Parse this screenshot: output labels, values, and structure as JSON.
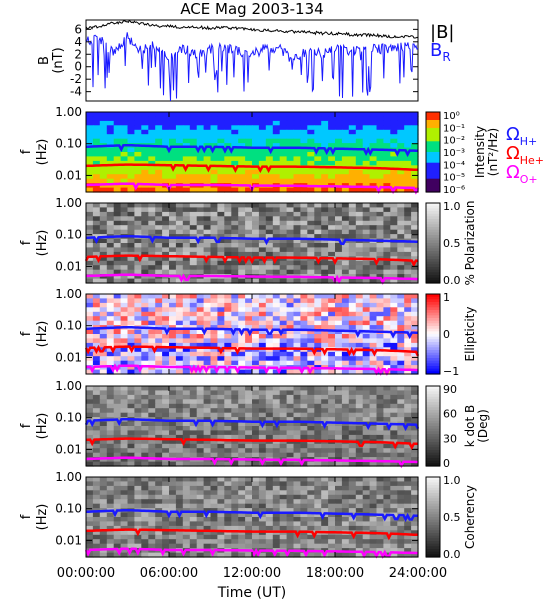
{
  "title": "ACE Mag 2003-134",
  "time_axis": {
    "label": "Time (UT)",
    "ticks": [
      "00:00:00",
      "06:00:00",
      "12:00:00",
      "18:00:00",
      "24:00:00"
    ],
    "range_hours": [
      0,
      24
    ]
  },
  "freq_ticks": [
    "1.00",
    "0.10",
    "0.01"
  ],
  "freq_axis_label": [
    "f",
    "(Hz)"
  ],
  "b_panel": {
    "ylabel": [
      "B",
      "(nT)"
    ],
    "yticks": [
      "6",
      "4",
      "2",
      "0",
      "-2",
      "-4"
    ],
    "ylim": [
      -5.5,
      7.5
    ],
    "legend": [
      {
        "main": "|B|",
        "sub": "",
        "color": "#000000"
      },
      {
        "main": "B",
        "sub": "R",
        "color": "#1a1aff"
      }
    ]
  },
  "gyro_legend": [
    {
      "main": "Ω",
      "sub": "H+",
      "color": "#1a1aff"
    },
    {
      "main": "Ω",
      "sub": "He+",
      "color": "#ff0000"
    },
    {
      "main": "Ω",
      "sub": "O+",
      "color": "#ff00ff"
    }
  ],
  "colorbars": [
    {
      "label_lines": [
        "Intensity",
        "(nT²/Hz)"
      ],
      "ticks": [
        "10⁰",
        "10⁻¹",
        "10⁻²",
        "10⁻³",
        "10⁻⁴",
        "10⁻⁵",
        "10⁻⁶"
      ]
    },
    {
      "label_lines": [
        "% Polarization"
      ],
      "ticks": [
        "1.0",
        "0.5",
        "0.0"
      ]
    },
    {
      "label_lines": [
        "Ellipticity"
      ],
      "ticks": [
        "1",
        "0",
        "−1"
      ]
    },
    {
      "label_lines": [
        "k dot B",
        "(Deg)"
      ],
      "ticks": [
        "90",
        "60",
        "30",
        "0"
      ]
    },
    {
      "label_lines": [
        "Coherency"
      ],
      "ticks": [
        "1.0",
        "0.5",
        "0.0"
      ]
    }
  ],
  "colors": {
    "b_total": "#000000",
    "b_radial": "#1a1aff",
    "omega_h": "#1a1aff",
    "omega_he": "#ff0000",
    "omega_o": "#ff00ff"
  },
  "chart_data": [
    {
      "type": "line",
      "title": "ACE Mag 2003-134",
      "ylabel": "B (nT)",
      "xlabel": "Time (UT)",
      "ylim": [
        -5.5,
        7.5
      ],
      "x": [
        0,
        1,
        2,
        3,
        4,
        5,
        6,
        7,
        8,
        9,
        10,
        11,
        12,
        13,
        14,
        15,
        16,
        17,
        18,
        19,
        20,
        21,
        22,
        23,
        24
      ],
      "series": [
        {
          "name": "|B|",
          "values": [
            6.2,
            6.5,
            7.0,
            7.3,
            6.9,
            6.6,
            6.5,
            6.3,
            6.4,
            6.2,
            6.3,
            6.1,
            6.0,
            5.8,
            5.7,
            5.6,
            5.5,
            5.4,
            5.3,
            5.2,
            5.1,
            5.0,
            4.9,
            4.8,
            4.7
          ]
        },
        {
          "name": "B R",
          "values": [
            4.0,
            4.5,
            2.0,
            4.8,
            2.5,
            3.5,
            1.5,
            3.0,
            2.0,
            2.8,
            3.2,
            2.5,
            2.0,
            3.0,
            2.8,
            1.0,
            2.5,
            2.0,
            2.8,
            2.5,
            3.0,
            2.8,
            3.0,
            3.2,
            3.5
          ]
        }
      ]
    },
    {
      "type": "heatmap",
      "quantity": "Intensity (nT²/Hz)",
      "xlabel": "Time (UT)",
      "ylabel": "f (Hz)",
      "y_scale": "log",
      "ylim": [
        0.003,
        1.0
      ],
      "color_range": [
        1e-06,
        1
      ],
      "series": [
        {
          "name": "Ω H+",
          "x": [
            0,
            3,
            6,
            9,
            12,
            15,
            18,
            21,
            24
          ],
          "values": [
            0.08,
            0.09,
            0.08,
            0.08,
            0.075,
            0.075,
            0.07,
            0.065,
            0.06
          ]
        },
        {
          "name": "Ω He+",
          "x": [
            0,
            3,
            6,
            9,
            12,
            15,
            18,
            21,
            24
          ],
          "values": [
            0.02,
            0.022,
            0.021,
            0.02,
            0.019,
            0.019,
            0.018,
            0.017,
            0.015
          ]
        },
        {
          "name": "Ω O+",
          "x": [
            0,
            3,
            6,
            9,
            12,
            15,
            18,
            21,
            24
          ],
          "values": [
            0.005,
            0.0055,
            0.005,
            0.005,
            0.0048,
            0.0047,
            0.0045,
            0.0043,
            0.004
          ]
        }
      ]
    },
    {
      "type": "heatmap",
      "quantity": "% Polarization",
      "xlabel": "Time (UT)",
      "ylabel": "f (Hz)",
      "y_scale": "log",
      "ylim": [
        0.003,
        1.0
      ],
      "color_range": [
        0.0,
        1.0
      ]
    },
    {
      "type": "heatmap",
      "quantity": "Ellipticity",
      "xlabel": "Time (UT)",
      "ylabel": "f (Hz)",
      "y_scale": "log",
      "ylim": [
        0.003,
        1.0
      ],
      "color_range": [
        -1,
        1
      ]
    },
    {
      "type": "heatmap",
      "quantity": "k dot B (Deg)",
      "xlabel": "Time (UT)",
      "ylabel": "f (Hz)",
      "y_scale": "log",
      "ylim": [
        0.003,
        1.0
      ],
      "color_range": [
        0,
        90
      ]
    },
    {
      "type": "heatmap",
      "quantity": "Coherency",
      "xlabel": "Time (UT)",
      "ylabel": "f (Hz)",
      "y_scale": "log",
      "ylim": [
        0.003,
        1.0
      ],
      "color_range": [
        0.0,
        1.0
      ]
    }
  ]
}
